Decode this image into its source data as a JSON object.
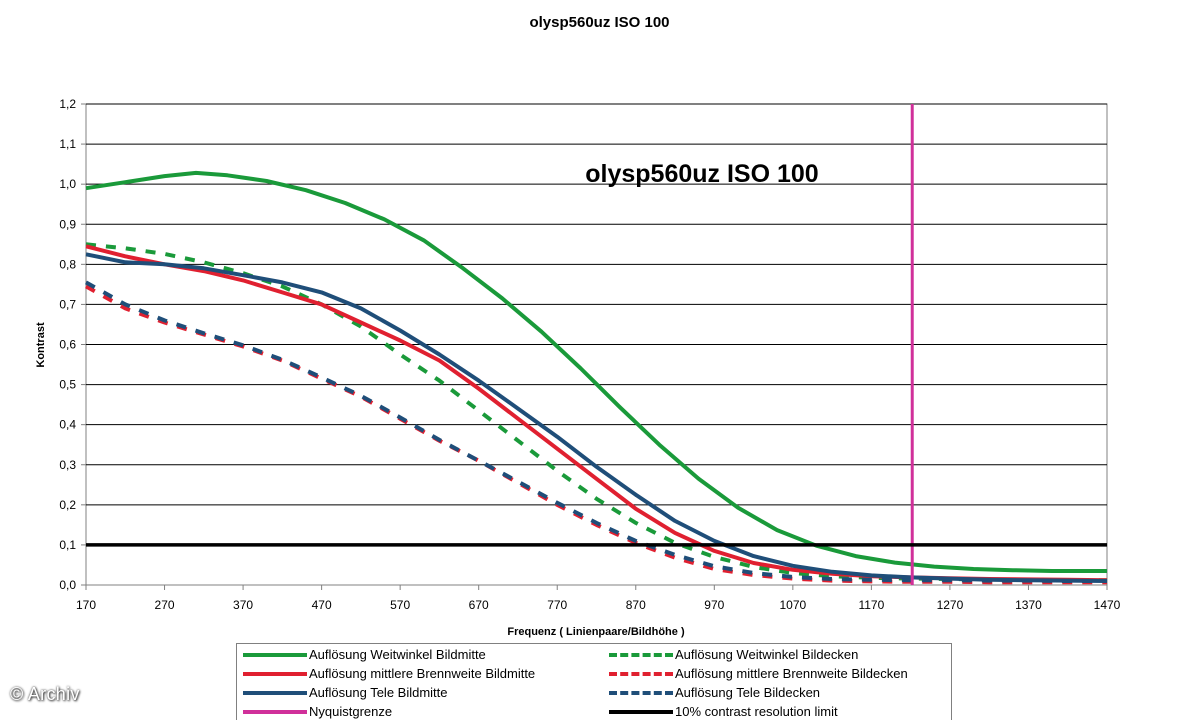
{
  "chart_data": {
    "type": "line",
    "title": "olysp560uz ISO 100",
    "annotation": "olysp560uz ISO 100",
    "xlabel": "Frequenz ( Linienpaare/Bildhöhe )",
    "ylabel": "Kontrast",
    "xlim": [
      170,
      1470
    ],
    "ylim": [
      0.0,
      1.2
    ],
    "x_ticks": [
      "170",
      "270",
      "370",
      "470",
      "570",
      "670",
      "770",
      "870",
      "970",
      "1070",
      "1170",
      "1270",
      "1370",
      "1470"
    ],
    "y_ticks": [
      "0,0",
      "0,1",
      "0,2",
      "0,3",
      "0,4",
      "0,5",
      "0,6",
      "0,7",
      "0,8",
      "0,9",
      "1,0",
      "1,1",
      "1,2"
    ],
    "grid": "horizontal",
    "legend_position": "bottom",
    "series": [
      {
        "name": "Auflösung Weitwinkel Bildmitte",
        "color": "#1a9a3a",
        "style": "solid",
        "x": [
          170,
          220,
          270,
          310,
          350,
          400,
          450,
          500,
          550,
          600,
          650,
          700,
          750,
          800,
          850,
          900,
          950,
          1000,
          1050,
          1100,
          1150,
          1200,
          1250,
          1300,
          1350,
          1400,
          1470
        ],
        "y": [
          0.99,
          1.005,
          1.02,
          1.028,
          1.022,
          1.008,
          0.985,
          0.953,
          0.912,
          0.86,
          0.79,
          0.715,
          0.632,
          0.54,
          0.443,
          0.35,
          0.265,
          0.193,
          0.137,
          0.098,
          0.072,
          0.056,
          0.046,
          0.04,
          0.037,
          0.035,
          0.035
        ]
      },
      {
        "name": "Auflösung Weitwinkel Bildecken",
        "color": "#1a9a3a",
        "style": "dashed",
        "x": [
          170,
          220,
          270,
          320,
          370,
          420,
          470,
          520,
          570,
          620,
          670,
          720,
          770,
          820,
          870,
          920,
          970,
          1020,
          1070,
          1120,
          1170,
          1220,
          1270,
          1320,
          1370,
          1420,
          1470
        ],
        "y": [
          0.85,
          0.84,
          0.826,
          0.805,
          0.778,
          0.745,
          0.7,
          0.645,
          0.575,
          0.51,
          0.435,
          0.36,
          0.285,
          0.215,
          0.155,
          0.105,
          0.07,
          0.045,
          0.03,
          0.022,
          0.018,
          0.016,
          0.015,
          0.014,
          0.013,
          0.012,
          0.012
        ]
      },
      {
        "name": "Auflösung mittlere Brennweite Bildmitte",
        "color": "#e02030",
        "style": "solid",
        "x": [
          170,
          220,
          270,
          320,
          370,
          420,
          470,
          520,
          570,
          620,
          670,
          720,
          770,
          820,
          870,
          920,
          970,
          1020,
          1070,
          1120,
          1170,
          1220,
          1270,
          1320,
          1370,
          1420,
          1470
        ],
        "y": [
          0.845,
          0.82,
          0.8,
          0.783,
          0.76,
          0.73,
          0.7,
          0.655,
          0.61,
          0.56,
          0.49,
          0.415,
          0.34,
          0.265,
          0.19,
          0.13,
          0.085,
          0.055,
          0.038,
          0.028,
          0.022,
          0.019,
          0.017,
          0.015,
          0.014,
          0.013,
          0.012
        ]
      },
      {
        "name": "Auflösung mittlere Brennweite Bildecken",
        "color": "#e02030",
        "style": "dashed",
        "x": [
          170,
          220,
          270,
          320,
          370,
          420,
          470,
          520,
          570,
          620,
          670,
          720,
          770,
          820,
          870,
          920,
          970,
          1020,
          1070,
          1120,
          1170,
          1220,
          1270,
          1320,
          1370,
          1420,
          1470
        ],
        "y": [
          0.745,
          0.69,
          0.655,
          0.625,
          0.595,
          0.56,
          0.515,
          0.47,
          0.415,
          0.36,
          0.31,
          0.255,
          0.2,
          0.15,
          0.105,
          0.068,
          0.04,
          0.025,
          0.016,
          0.011,
          0.009,
          0.008,
          0.008,
          0.007,
          0.007,
          0.007,
          0.007
        ]
      },
      {
        "name": "Auflösung Tele Bildmitte",
        "color": "#1f4e79",
        "style": "solid",
        "x": [
          170,
          220,
          270,
          320,
          370,
          420,
          470,
          520,
          570,
          620,
          670,
          720,
          770,
          820,
          870,
          920,
          970,
          1020,
          1070,
          1120,
          1170,
          1220,
          1270,
          1320,
          1370,
          1420,
          1470
        ],
        "y": [
          0.825,
          0.805,
          0.8,
          0.79,
          0.773,
          0.755,
          0.73,
          0.69,
          0.635,
          0.575,
          0.51,
          0.44,
          0.37,
          0.295,
          0.225,
          0.16,
          0.11,
          0.072,
          0.048,
          0.033,
          0.024,
          0.019,
          0.016,
          0.013,
          0.012,
          0.011,
          0.01
        ]
      },
      {
        "name": "Auflösung Tele Bildecken",
        "color": "#1f4e79",
        "style": "dashed",
        "x": [
          170,
          220,
          270,
          320,
          370,
          420,
          470,
          520,
          570,
          620,
          670,
          720,
          770,
          820,
          870,
          920,
          970,
          1020,
          1070,
          1120,
          1170,
          1220,
          1270,
          1320,
          1370,
          1420,
          1470
        ],
        "y": [
          0.755,
          0.7,
          0.66,
          0.628,
          0.598,
          0.562,
          0.518,
          0.472,
          0.418,
          0.362,
          0.31,
          0.258,
          0.205,
          0.155,
          0.11,
          0.075,
          0.047,
          0.03,
          0.02,
          0.015,
          0.013,
          0.012,
          0.012,
          0.011,
          0.011,
          0.01,
          0.01
        ]
      },
      {
        "name": "Nyquistgrenze",
        "color": "#d0309a",
        "style": "vertical",
        "x": 1222
      },
      {
        "name": "10% contrast resolution limit",
        "color": "#000000",
        "style": "horizontal",
        "y": 0.1
      }
    ]
  },
  "legend": {
    "items": [
      {
        "label": "Auflösung Weitwinkel Bildmitte",
        "color": "#1a9a3a",
        "dashed": false
      },
      {
        "label": "Auflösung Weitwinkel Bildecken",
        "color": "#1a9a3a",
        "dashed": true
      },
      {
        "label": "Auflösung mittlere Brennweite Bildmitte",
        "color": "#e02030",
        "dashed": false
      },
      {
        "label": "Auflösung mittlere Brennweite Bildecken",
        "color": "#e02030",
        "dashed": true
      },
      {
        "label": "Auflösung Tele Bildmitte",
        "color": "#1f4e79",
        "dashed": false
      },
      {
        "label": "Auflösung Tele Bildecken",
        "color": "#1f4e79",
        "dashed": true
      },
      {
        "label": "Nyquistgrenze",
        "color": "#d0309a",
        "dashed": false
      },
      {
        "label": "10% contrast resolution limit",
        "color": "#000000",
        "dashed": false
      }
    ]
  },
  "watermark": "© Archiv"
}
